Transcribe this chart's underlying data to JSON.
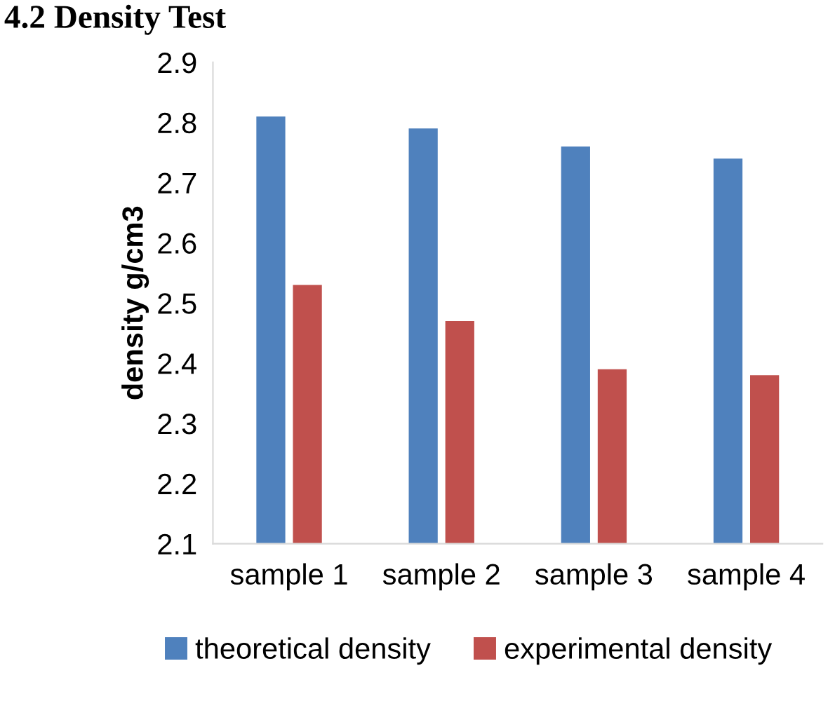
{
  "chart_data": {
    "type": "bar",
    "title": "4.2 Density Test",
    "ylabel": "density g/cm3",
    "categories": [
      "sample 1",
      "sample 2",
      "sample 3",
      "sample 4"
    ],
    "series": [
      {
        "name": "theoretical density",
        "color": "#4f81bd",
        "values": [
          2.81,
          2.79,
          2.76,
          2.74
        ]
      },
      {
        "name": "experimental density",
        "color": "#c0504d",
        "values": [
          2.53,
          2.47,
          2.39,
          2.38
        ]
      }
    ],
    "ylim": [
      2.1,
      2.9
    ],
    "yticks": [
      2.1,
      2.2,
      2.3,
      2.4,
      2.5,
      2.6,
      2.7,
      2.8,
      2.9
    ],
    "grid": false,
    "legend": "bottom"
  }
}
